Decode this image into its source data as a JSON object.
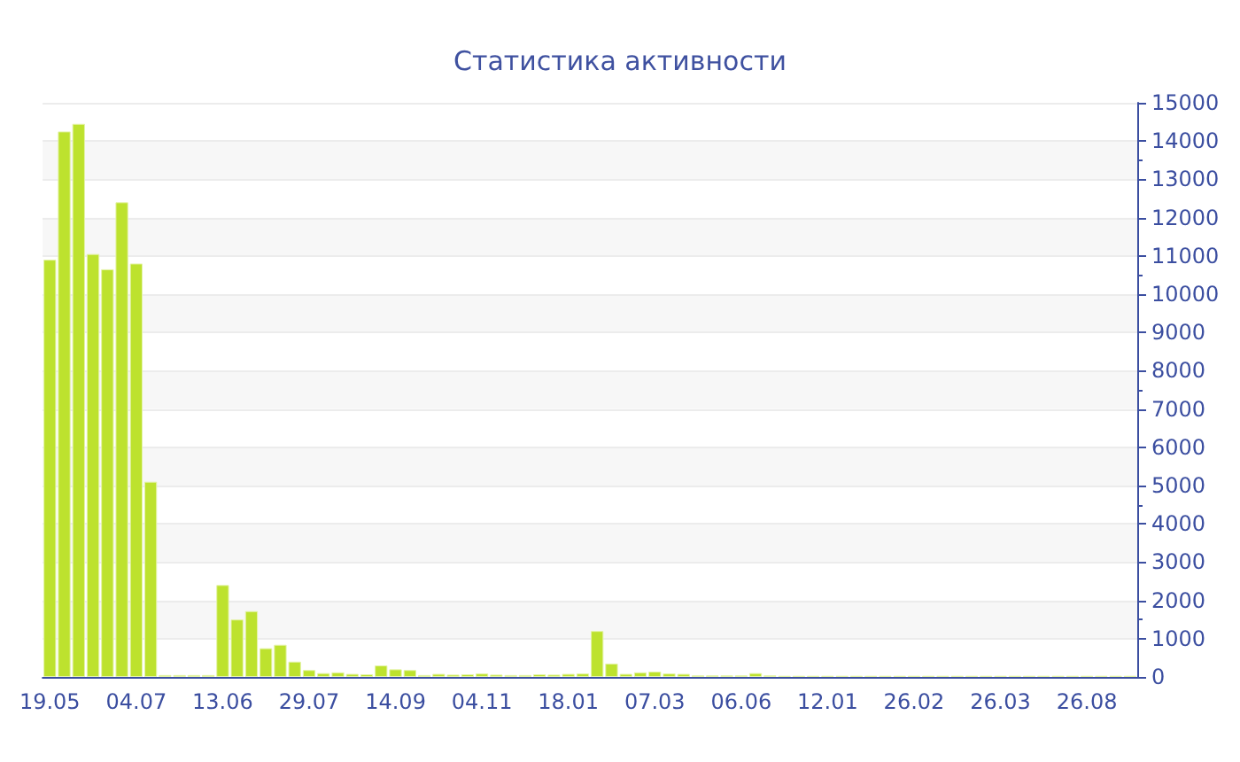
{
  "chart_data": {
    "type": "bar",
    "title": "Статистика активности",
    "categories": [
      "19.05",
      null,
      null,
      null,
      null,
      null,
      "04.07",
      null,
      null,
      null,
      null,
      null,
      "13.06",
      null,
      null,
      null,
      null,
      null,
      "29.07",
      null,
      null,
      null,
      null,
      null,
      "14.09",
      null,
      null,
      null,
      null,
      null,
      "04.11",
      null,
      null,
      null,
      null,
      null,
      "18.01",
      null,
      null,
      null,
      null,
      null,
      "07.03",
      null,
      null,
      null,
      null,
      null,
      "06.06",
      null,
      null,
      null,
      null,
      null,
      "12.01",
      null,
      null,
      null,
      null,
      null,
      "26.02",
      null,
      null,
      null,
      null,
      null,
      "26.03",
      null,
      null,
      null,
      null,
      null,
      "26.08",
      null,
      null,
      null
    ],
    "values": [
      10900,
      14250,
      14450,
      11050,
      10650,
      12400,
      10800,
      5100,
      50,
      50,
      50,
      50,
      2400,
      1500,
      1720,
      750,
      840,
      400,
      180,
      100,
      120,
      80,
      70,
      300,
      200,
      180,
      50,
      80,
      60,
      70,
      90,
      60,
      50,
      50,
      70,
      60,
      80,
      90,
      1200,
      350,
      80,
      120,
      140,
      90,
      80,
      40,
      40,
      40,
      40,
      100,
      40,
      30,
      30,
      30,
      30,
      30,
      30,
      30,
      30,
      30,
      30,
      30,
      30,
      30,
      30,
      30,
      30,
      30,
      30,
      30,
      30,
      30,
      30,
      30,
      30,
      30
    ],
    "color": "#bde22e",
    "ylim": [
      0,
      15000
    ],
    "yticks": [
      0,
      1000,
      2000,
      3000,
      4000,
      5000,
      6000,
      7000,
      8000,
      9000,
      10000,
      11000,
      12000,
      13000,
      14000,
      15000
    ],
    "grid": true
  }
}
